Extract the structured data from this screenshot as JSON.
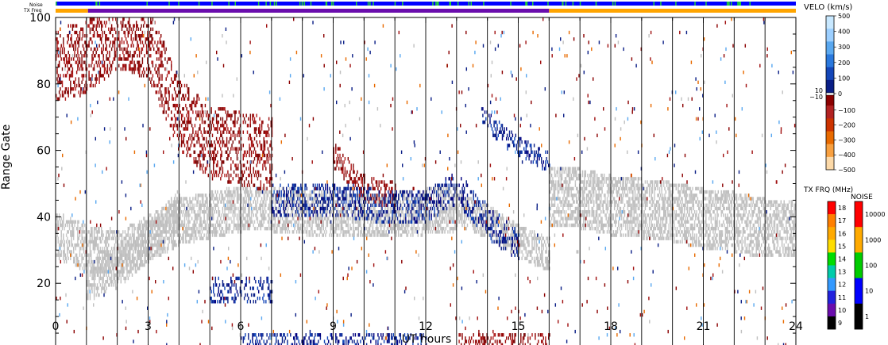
{
  "chart_data": {
    "type": "heatmap",
    "xlabel": "UT hours",
    "ylabel": "Range Gate",
    "xlim": [
      0,
      24
    ],
    "ylim": [
      0,
      100
    ],
    "x_ticks": [
      "0",
      "3",
      "6",
      "9",
      "12",
      "15",
      "18",
      "21",
      "24"
    ],
    "y_ticks": [
      "0",
      "20",
      "40",
      "60",
      "80",
      "100"
    ],
    "x_tick_values": [
      0,
      3,
      6,
      9,
      12,
      15,
      18,
      21,
      24
    ],
    "y_tick_values": [
      0,
      20,
      40,
      60,
      80,
      100
    ],
    "scan_boundaries_ut": [
      1,
      2,
      3,
      4,
      5,
      6,
      7,
      8,
      9,
      10,
      11,
      12,
      13,
      14,
      15,
      16,
      17,
      18,
      19,
      20,
      21,
      22,
      23
    ],
    "noise_strip_label": "Noise",
    "txfreq_strip_label": "TX Freq",
    "txfreq_segments": [
      {
        "from": 0,
        "to": 1.05,
        "color": "#ffa500"
      },
      {
        "from": 1.05,
        "to": 16,
        "color": "#6a0dad"
      },
      {
        "from": 16,
        "to": 24,
        "color": "#ffa500"
      }
    ],
    "noise_color": "#0000ff",
    "noise_highlight_color": "#22cc33",
    "scatter_regions": [
      {
        "name": "ground scatter band",
        "kind": "ground",
        "points": [
          [
            0,
            34
          ],
          [
            1,
            30
          ],
          [
            2,
            28
          ],
          [
            3,
            33
          ],
          [
            4,
            38
          ],
          [
            5,
            40
          ],
          [
            6,
            42
          ],
          [
            7,
            42
          ],
          [
            8,
            41
          ],
          [
            9,
            40
          ],
          [
            10,
            40
          ],
          [
            11,
            40
          ],
          [
            12,
            41
          ],
          [
            13,
            42
          ]
        ],
        "halfwidth": 6
      },
      {
        "name": "ground scatter descending",
        "kind": "ground",
        "points": [
          [
            1,
            20
          ],
          [
            2,
            24
          ],
          [
            3,
            32
          ],
          [
            4,
            42
          ]
        ],
        "halfwidth": 5
      },
      {
        "name": "ground scatter late",
        "kind": "ground",
        "points": [
          [
            16,
            46
          ],
          [
            17,
            45
          ],
          [
            18,
            43
          ],
          [
            19,
            42
          ],
          [
            20,
            41
          ],
          [
            21,
            39
          ],
          [
            22,
            38
          ],
          [
            23,
            36
          ],
          [
            24,
            36
          ]
        ],
        "halfwidth": 8
      },
      {
        "name": "ground scatter slope",
        "kind": "ground",
        "points": [
          [
            13,
            42
          ],
          [
            14,
            38
          ],
          [
            15,
            32
          ],
          [
            16,
            28
          ]
        ],
        "halfwidth": 4
      },
      {
        "name": "ionospheric echoes morning",
        "kind": "negative",
        "points": [
          [
            0,
            85
          ],
          [
            1,
            88
          ],
          [
            2,
            95
          ],
          [
            3,
            92
          ],
          [
            4,
            70
          ],
          [
            5,
            62
          ],
          [
            6,
            60
          ],
          [
            7,
            58
          ]
        ],
        "halfwidth": 10
      },
      {
        "name": "ionospheric streak",
        "kind": "negative",
        "points": [
          [
            9,
            58
          ],
          [
            10,
            48
          ],
          [
            11,
            46
          ]
        ],
        "halfwidth": 3
      },
      {
        "name": "positive velocity band",
        "kind": "positive",
        "points": [
          [
            7,
            44
          ],
          [
            9,
            45
          ],
          [
            11,
            42
          ],
          [
            12,
            43
          ],
          [
            13,
            48
          ],
          [
            14,
            38
          ],
          [
            15,
            30
          ]
        ],
        "halfwidth": 4
      },
      {
        "name": "positive velocity streak",
        "kind": "positive",
        "points": [
          [
            13.8,
            70
          ],
          [
            14.6,
            63
          ],
          [
            15.5,
            58
          ],
          [
            16,
            56
          ]
        ],
        "halfwidth": 2
      },
      {
        "name": "near-range positive cluster",
        "kind": "positive",
        "points": [
          [
            5,
            17
          ],
          [
            6,
            18
          ],
          [
            7,
            17
          ]
        ],
        "halfwidth": 3
      },
      {
        "name": "near-range negative band",
        "kind": "negative",
        "points": [
          [
            13,
            1
          ],
          [
            14,
            1.5
          ],
          [
            15,
            1.5
          ],
          [
            16,
            1
          ]
        ],
        "halfwidth": 2
      },
      {
        "name": "near-range positive band",
        "kind": "positive",
        "points": [
          [
            6,
            1
          ],
          [
            9,
            2
          ],
          [
            12,
            2
          ]
        ],
        "halfwidth": 2
      }
    ],
    "velocity_colorbar": {
      "title": "VELO (km/s)",
      "labels": [
        "500",
        "400",
        "300",
        "200",
        "100",
        "0",
        "−100",
        "−200",
        "−300",
        "−400",
        "−500"
      ],
      "label_values": [
        500,
        400,
        300,
        200,
        100,
        0,
        -100,
        -200,
        -300,
        -400,
        -500
      ],
      "side_labels": [
        "10",
        "−10"
      ],
      "colors": [
        "#c8e8ff",
        "#9ccfff",
        "#5aa8f0",
        "#2a78dd",
        "#1446b8",
        "#0a1e86",
        "#8b0000",
        "#b22222",
        "#cc3300",
        "#e86a00",
        "#f8a040",
        "#fcd9a8"
      ]
    },
    "txfreq_colorbar": {
      "title": "TX FRQ (MHz)",
      "labels": [
        "18",
        "17",
        "16",
        "15",
        "14",
        "13",
        "12",
        "11",
        "10",
        "9"
      ],
      "colors": [
        "#ff0000",
        "#ff7f00",
        "#ffaa00",
        "#ffdd00",
        "#00dd00",
        "#00ccaa",
        "#3399ff",
        "#2222dd",
        "#6a0dad",
        "#000000"
      ]
    },
    "noise_colorbar": {
      "title": "NOISE",
      "labels": [
        "10000",
        "1000",
        "100",
        "10",
        "1"
      ],
      "colors": [
        "#ff0000",
        "#ffaa00",
        "#00cc00",
        "#0000ff",
        "#000000"
      ]
    }
  }
}
